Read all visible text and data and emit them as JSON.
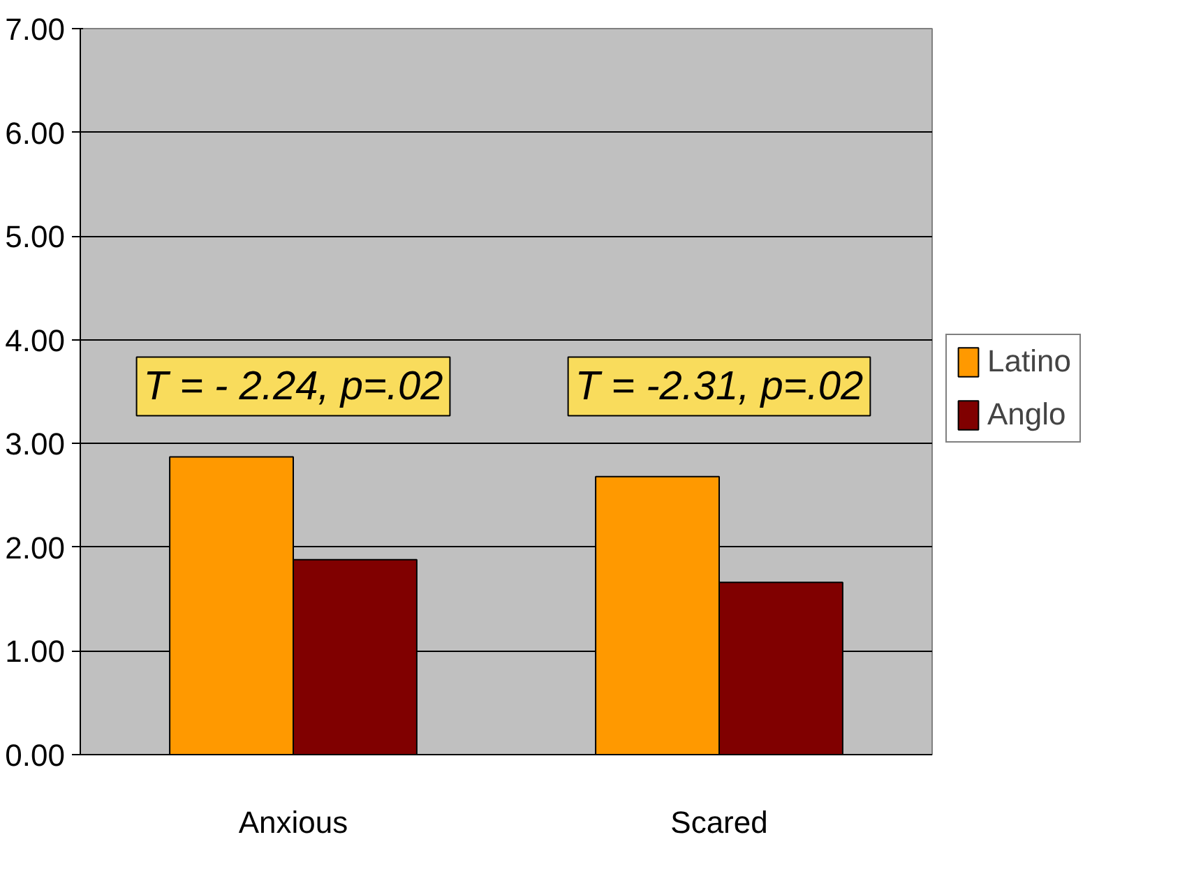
{
  "chart_data": {
    "type": "bar",
    "categories": [
      "Anxious",
      "Scared"
    ],
    "series": [
      {
        "name": "Latino",
        "color": "#ff9900",
        "values": [
          2.87,
          2.68
        ]
      },
      {
        "name": "Anglo",
        "color": "#800000",
        "values": [
          1.88,
          1.66
        ]
      }
    ],
    "ylim": [
      0,
      7
    ],
    "yticks": [
      {
        "value": 0,
        "label": "0.00"
      },
      {
        "value": 1,
        "label": "1.00"
      },
      {
        "value": 2,
        "label": "2.00"
      },
      {
        "value": 3,
        "label": "3.00"
      },
      {
        "value": 4,
        "label": "4.00"
      },
      {
        "value": 5,
        "label": "5.00"
      },
      {
        "value": 6,
        "label": "6.00"
      },
      {
        "value": 7,
        "label": "7.00"
      }
    ],
    "grid": "y",
    "legend": "right",
    "annotations": [
      "T = - 2.24, p=.02",
      "T = -2.31, p=.02"
    ]
  }
}
